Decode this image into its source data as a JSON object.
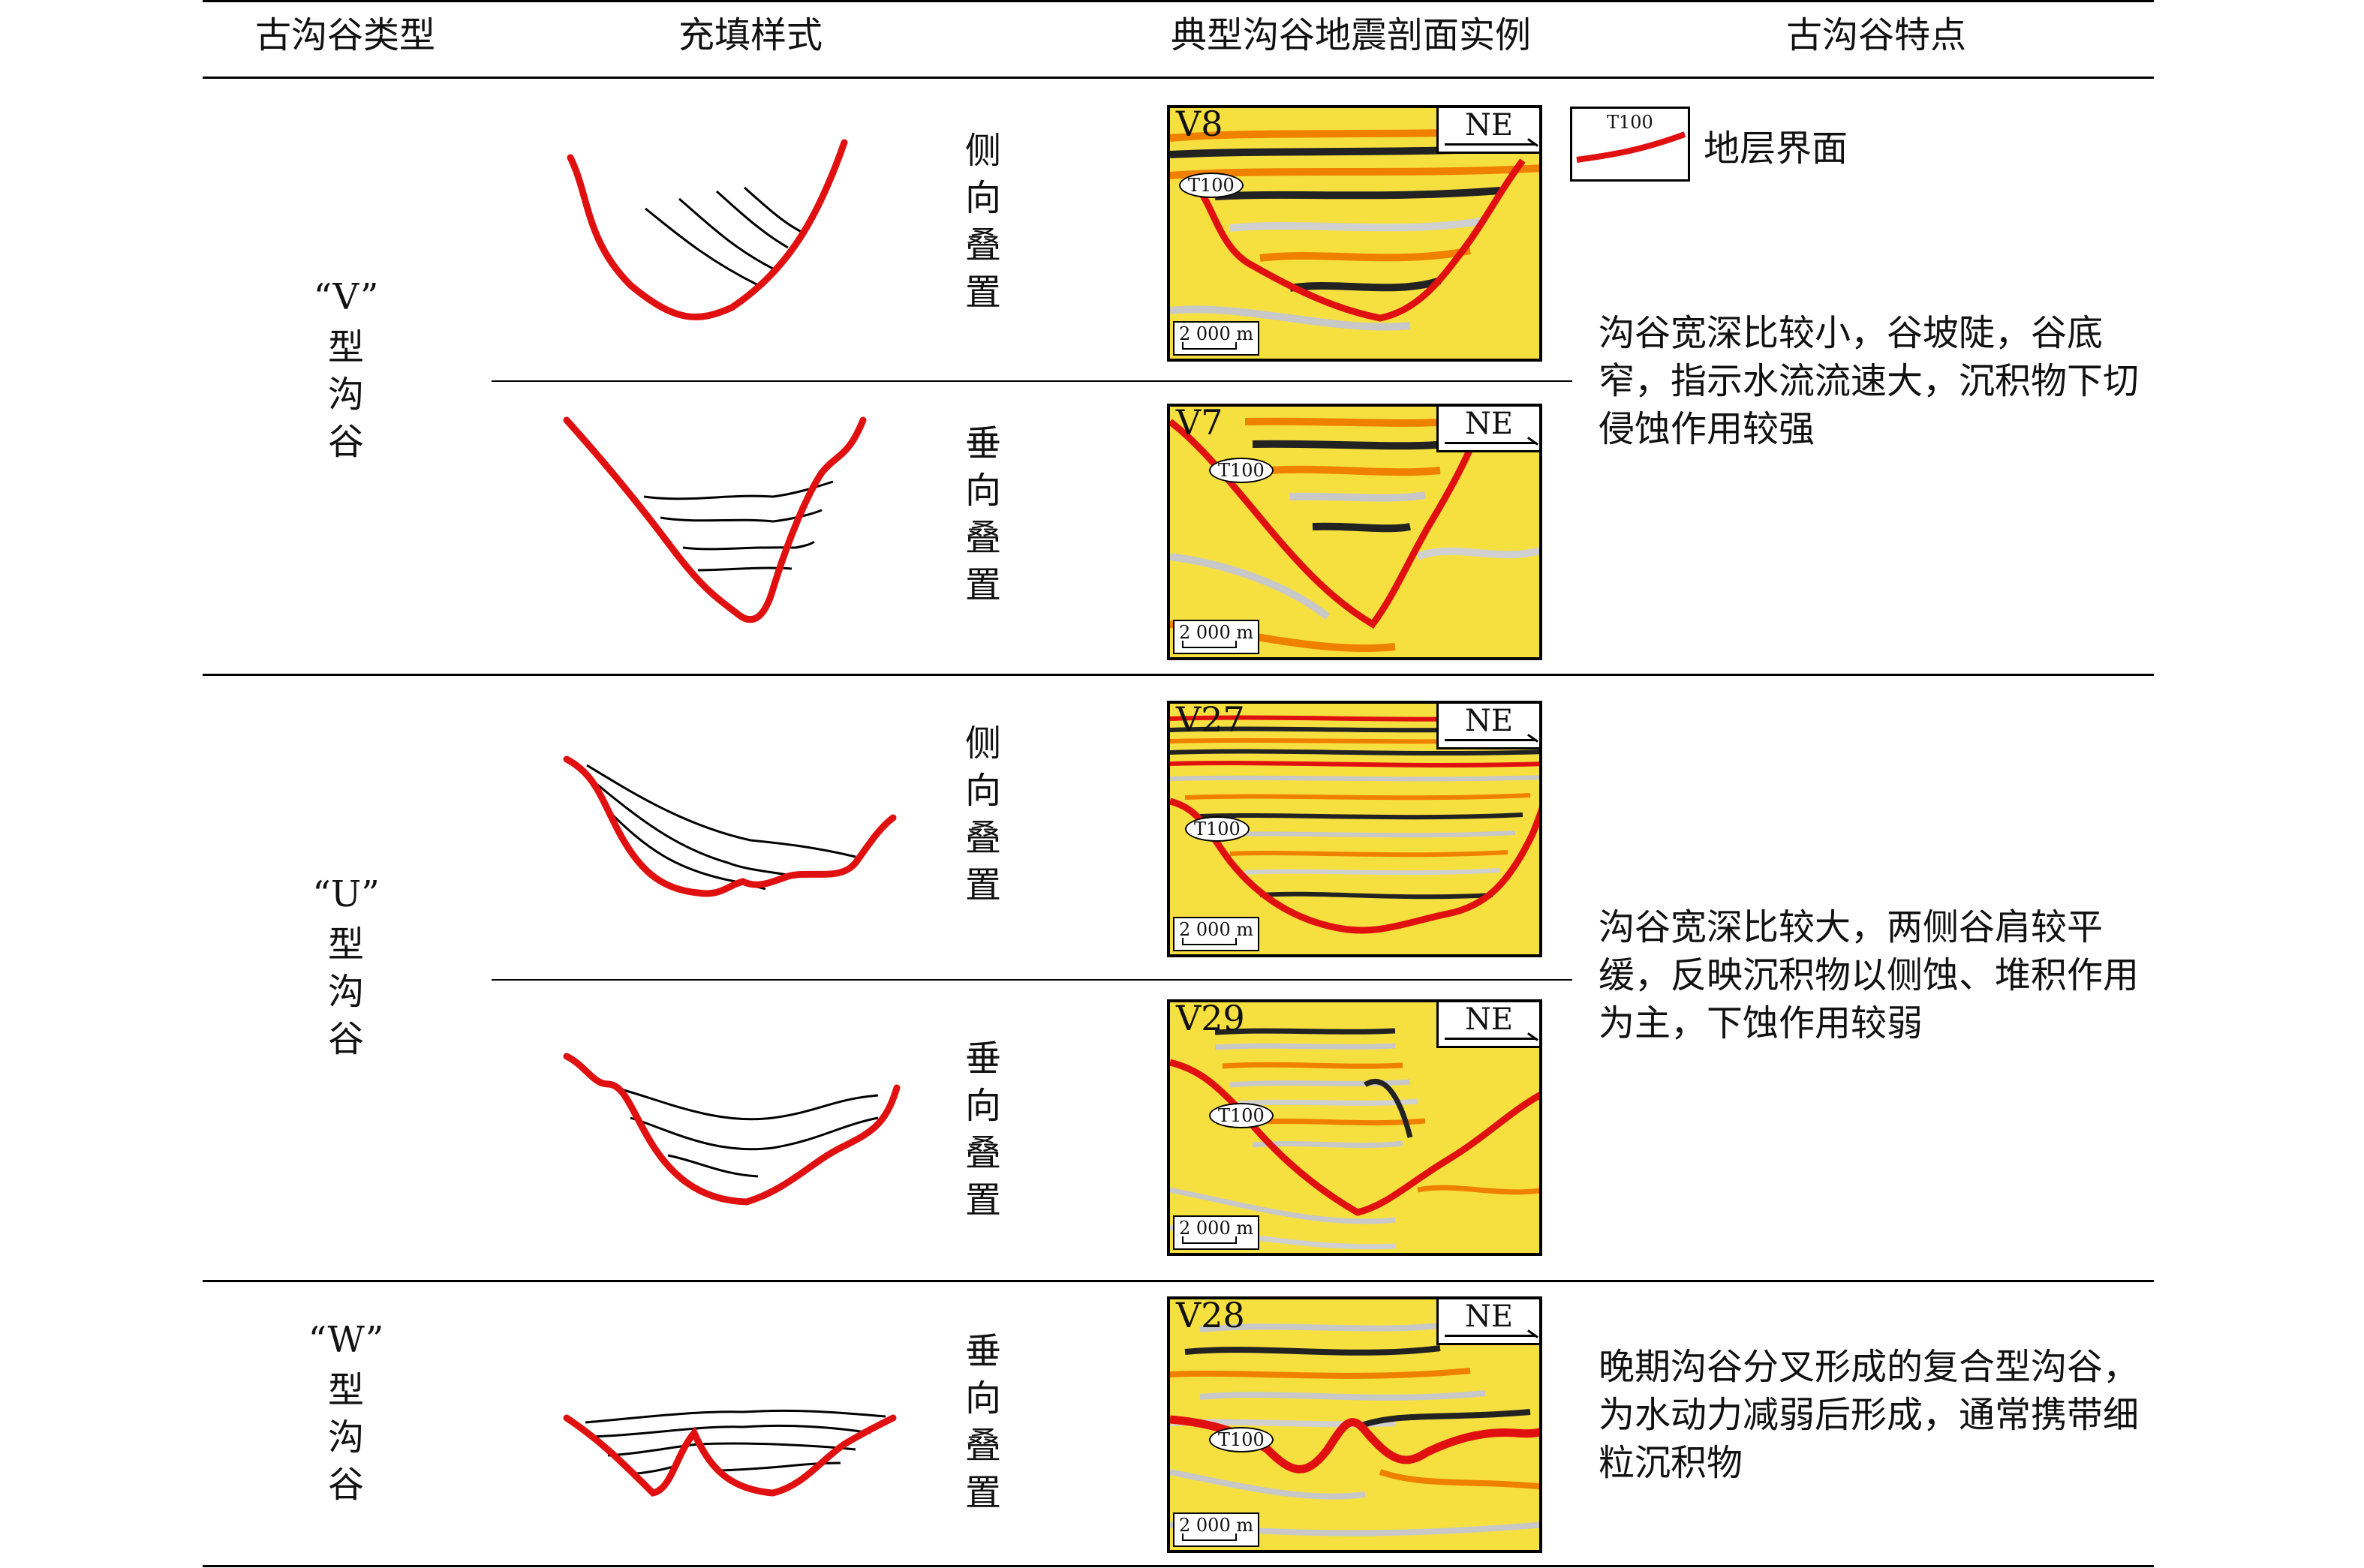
{
  "headers": {
    "type": "古沟谷类型",
    "fill": "充填样式",
    "example": "典型沟谷地震剖面实例",
    "feature": "古沟谷特点"
  },
  "legend": {
    "tag": "T100",
    "label": "地层界面"
  },
  "groups": [
    {
      "quote": "“V”",
      "chars": [
        "型",
        "沟",
        "谷"
      ],
      "description": "沟谷宽深比较小，谷坡陡，谷底窄，指示水流流速大，沉积物下切侵蚀作用较强"
    },
    {
      "quote": "“U”",
      "chars": [
        "型",
        "沟",
        "谷"
      ],
      "description": "沟谷宽深比较大，两侧谷肩较平缓，反映沉积物以侧蚀、堆积作用为主，下蚀作用较弱"
    },
    {
      "quote": "“W”",
      "chars": [
        "型",
        "沟",
        "谷"
      ],
      "description": "晚期沟谷分叉形成的复合型沟谷，为水动力减弱后形成，通常携带细粒沉积物"
    }
  ],
  "rows": [
    {
      "fill_chars": [
        "侧",
        "向",
        "叠",
        "置"
      ],
      "panel": {
        "name": "V8",
        "direction": "NE",
        "horizon": "T100",
        "scale": "2 000 m"
      }
    },
    {
      "fill_chars": [
        "垂",
        "向",
        "叠",
        "置"
      ],
      "panel": {
        "name": "V7",
        "direction": "NE",
        "horizon": "T100",
        "scale": "2 000 m"
      }
    },
    {
      "fill_chars": [
        "侧",
        "向",
        "叠",
        "置"
      ],
      "panel": {
        "name": "V27",
        "direction": "NE",
        "horizon": "T100",
        "scale": "2 000 m"
      }
    },
    {
      "fill_chars": [
        "垂",
        "向",
        "叠",
        "置"
      ],
      "panel": {
        "name": "V29",
        "direction": "NE",
        "horizon": "T100",
        "scale": "2 000 m"
      }
    },
    {
      "fill_chars": [
        "垂",
        "向",
        "叠",
        "置"
      ],
      "panel": {
        "name": "V28",
        "direction": "NE",
        "horizon": "T100",
        "scale": "2 000 m"
      }
    }
  ],
  "colors": {
    "boundary_red": "#e11010",
    "seismic_yellow": "#f4e000",
    "seismic_orange": "#f08000",
    "seismic_black": "#222222"
  }
}
